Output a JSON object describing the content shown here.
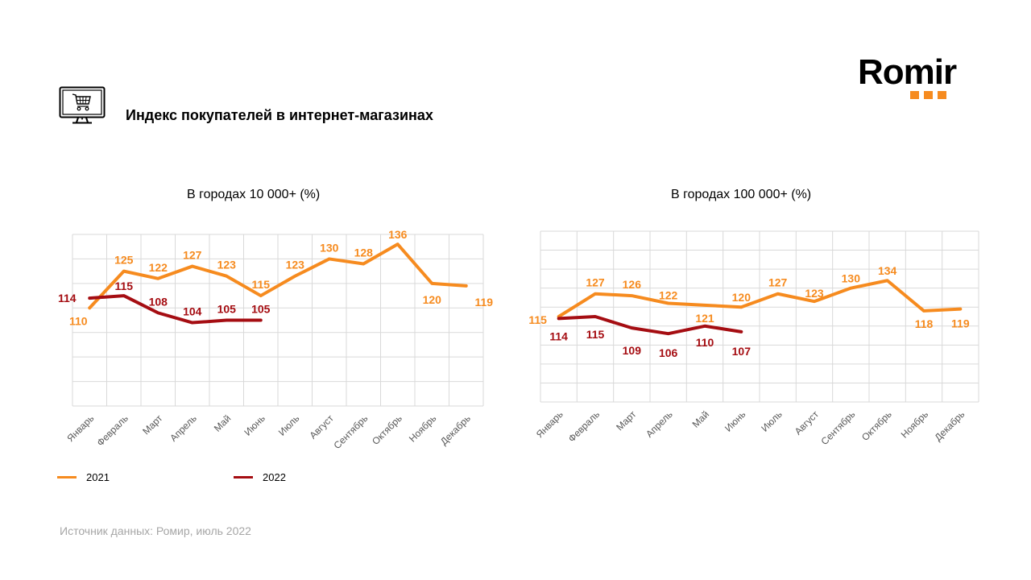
{
  "header": {
    "title": "Индекс покупателей в интернет-магазинах",
    "icon": "computer-shopping-cart-icon"
  },
  "logo": {
    "text": "Romir",
    "accent_color": "#f68b1f"
  },
  "colors": {
    "series_2021": "#f68b1f",
    "series_2022": "#a50d12",
    "grid": "#d9d9d9",
    "axis_label": "#595959"
  },
  "legend": {
    "items": [
      {
        "label": "2021",
        "color": "#f68b1f"
      },
      {
        "label": "2022",
        "color": "#a50d12"
      }
    ]
  },
  "source": "Источник данных: Ромир, июль 2022",
  "chart_data": [
    {
      "type": "line",
      "title": "В городах 10 000+ (%)",
      "xlabel": "",
      "ylabel": "",
      "categories": [
        "Январь",
        "Февраль",
        "Март",
        "Апрель",
        "Май",
        "Июнь",
        "Июль",
        "Август",
        "Сентябрь",
        "Октябрь",
        "Ноябрь",
        "Декабрь"
      ],
      "ylim": [
        70,
        140
      ],
      "ystep": 10,
      "grid": true,
      "y_tick_labels_shown": false,
      "legend_position": "bottom",
      "series": [
        {
          "name": "2021",
          "color": "#f68b1f",
          "values": [
            110,
            125,
            122,
            127,
            123,
            115,
            123,
            130,
            128,
            136,
            120,
            119
          ]
        },
        {
          "name": "2022",
          "color": "#a50d12",
          "values": [
            114,
            115,
            108,
            104,
            105,
            105
          ]
        }
      ]
    },
    {
      "type": "line",
      "title": "В городах 100 000+ (%)",
      "xlabel": "",
      "ylabel": "",
      "categories": [
        "Январь",
        "Февраль",
        "Март",
        "Апрель",
        "Май",
        "Июнь",
        "Июль",
        "Август",
        "Сентябрь",
        "Октябрь",
        "Ноябрь",
        "Декабрь"
      ],
      "ylim": [
        70,
        160
      ],
      "ystep": 10,
      "grid": true,
      "y_tick_labels_shown": false,
      "legend_position": "none",
      "series": [
        {
          "name": "2021",
          "color": "#f68b1f",
          "values": [
            115,
            127,
            126,
            122,
            121,
            120,
            127,
            123,
            130,
            134,
            118,
            119
          ]
        },
        {
          "name": "2022",
          "color": "#a50d12",
          "values": [
            114,
            115,
            109,
            106,
            110,
            107
          ]
        }
      ]
    }
  ]
}
